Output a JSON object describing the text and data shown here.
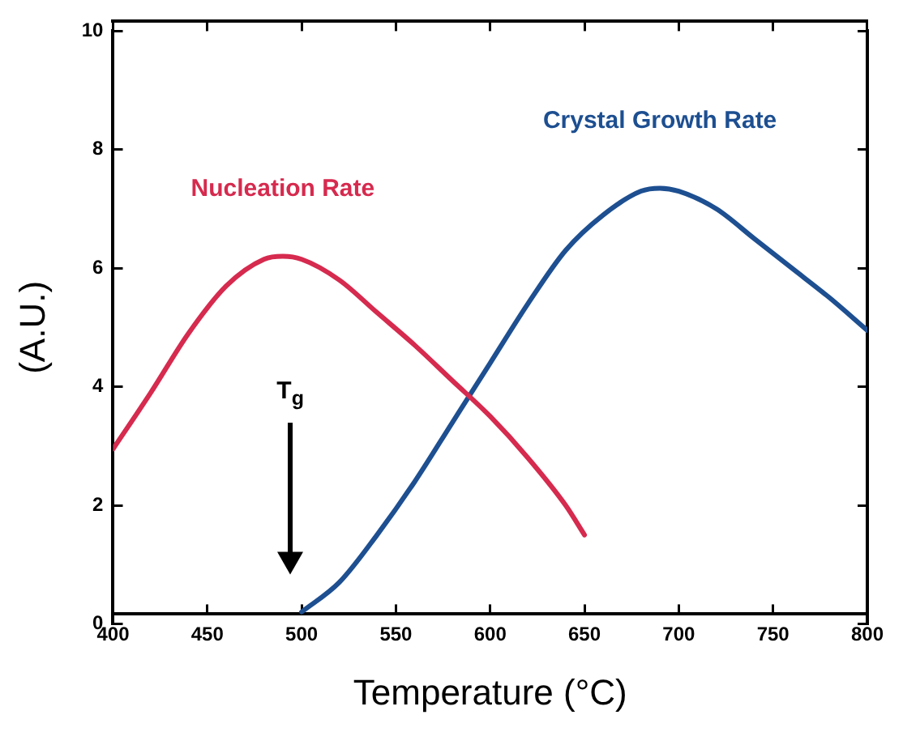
{
  "chart_data": {
    "type": "line",
    "xlabel": "Temperature (°C)",
    "ylabel": "(A.U.)",
    "xlim": [
      400,
      800
    ],
    "ylim": [
      0,
      10
    ],
    "xticks": [
      400,
      450,
      500,
      550,
      600,
      650,
      700,
      750,
      800
    ],
    "yticks": [
      0,
      2,
      4,
      6,
      8,
      10
    ],
    "grid": false,
    "legend": false,
    "marker": "none",
    "line_style": "solid",
    "series": [
      {
        "name": "Nucleation Rate",
        "color": "#d62a4e",
        "x": [
          400,
          420,
          440,
          460,
          480,
          490,
          500,
          520,
          540,
          560,
          580,
          600,
          620,
          640,
          650
        ],
        "values": [
          2.95,
          3.9,
          4.9,
          5.7,
          6.15,
          6.2,
          6.15,
          5.8,
          5.25,
          4.7,
          4.1,
          3.5,
          2.8,
          2.0,
          1.5
        ]
      },
      {
        "name": "Crystal Growth Rate",
        "color": "#1d4f91",
        "x": [
          500,
          520,
          540,
          560,
          580,
          600,
          620,
          640,
          660,
          680,
          690,
          700,
          720,
          740,
          760,
          780,
          800
        ],
        "values": [
          0.2,
          0.7,
          1.5,
          2.4,
          3.4,
          4.4,
          5.4,
          6.3,
          6.9,
          7.3,
          7.35,
          7.3,
          7.0,
          6.5,
          6.0,
          5.5,
          4.95
        ]
      }
    ],
    "annotations": [
      "T$_{g}$"
    ]
  }
}
